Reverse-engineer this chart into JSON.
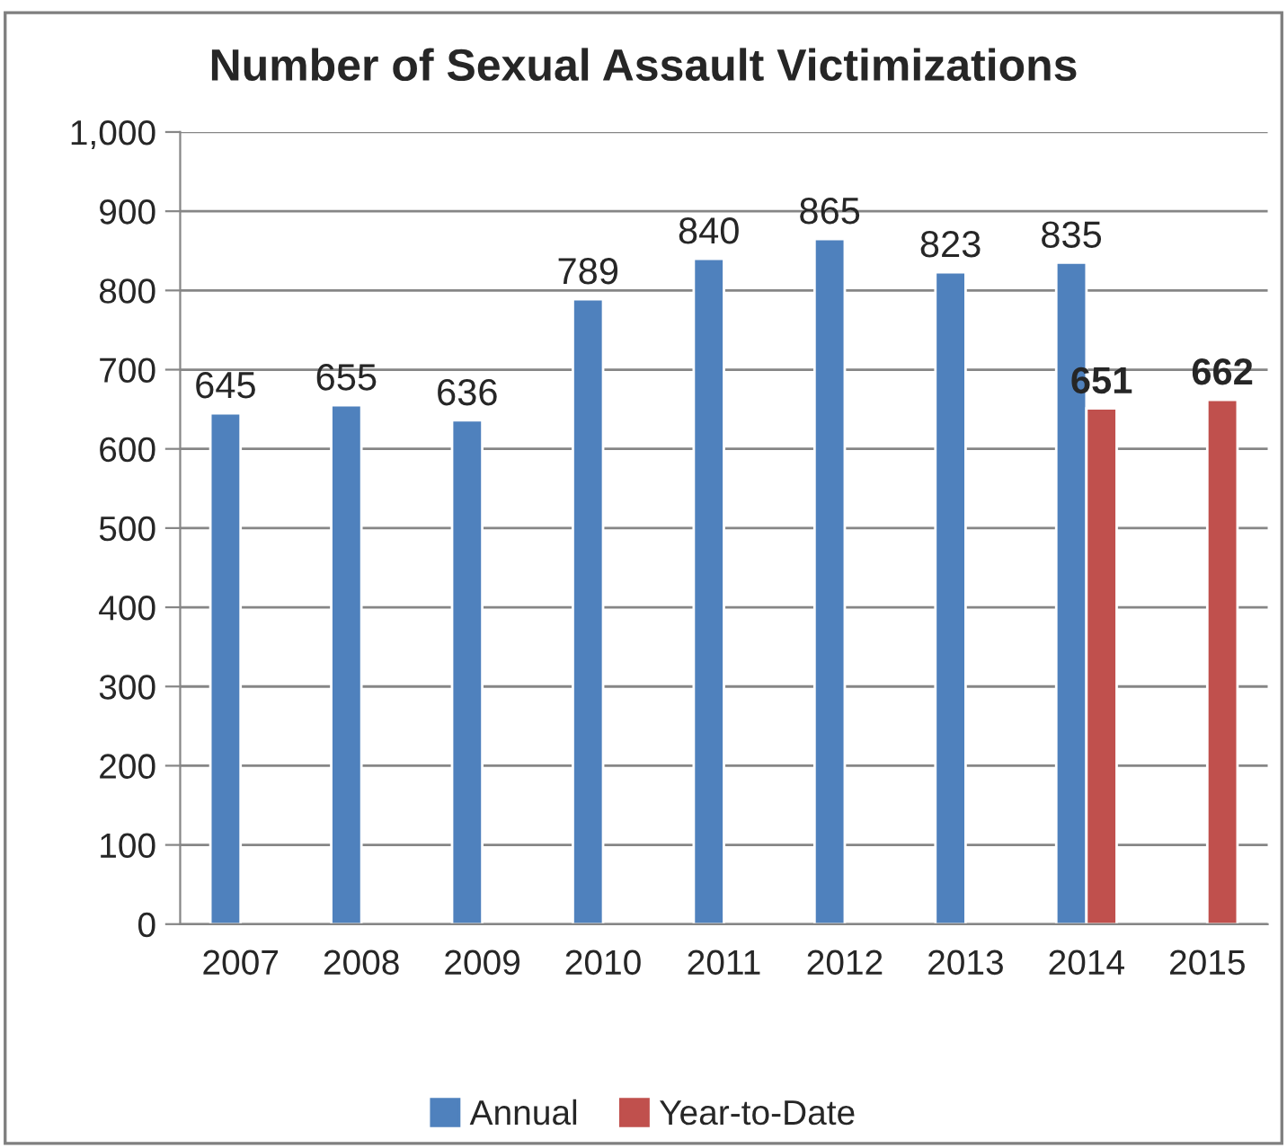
{
  "chart_data": {
    "type": "bar",
    "title": "Number of Sexual Assault Victimizations",
    "categories": [
      "2007",
      "2008",
      "2009",
      "2010",
      "2011",
      "2012",
      "2013",
      "2014",
      "2015"
    ],
    "series": [
      {
        "name": "Annual",
        "color": "#4f81bd",
        "values": [
          645,
          655,
          636,
          789,
          840,
          865,
          823,
          835,
          null
        ]
      },
      {
        "name": "Year-to-Date",
        "color": "#c0504d",
        "values": [
          null,
          null,
          null,
          null,
          null,
          null,
          null,
          651,
          662
        ]
      }
    ],
    "ylim": [
      0,
      1000
    ],
    "yticks": [
      0,
      100,
      200,
      300,
      400,
      500,
      600,
      700,
      800,
      900,
      {
        "value": 1000,
        "label": "1,000"
      }
    ],
    "grid": "y",
    "legend": "bottom",
    "data_labels": true
  }
}
